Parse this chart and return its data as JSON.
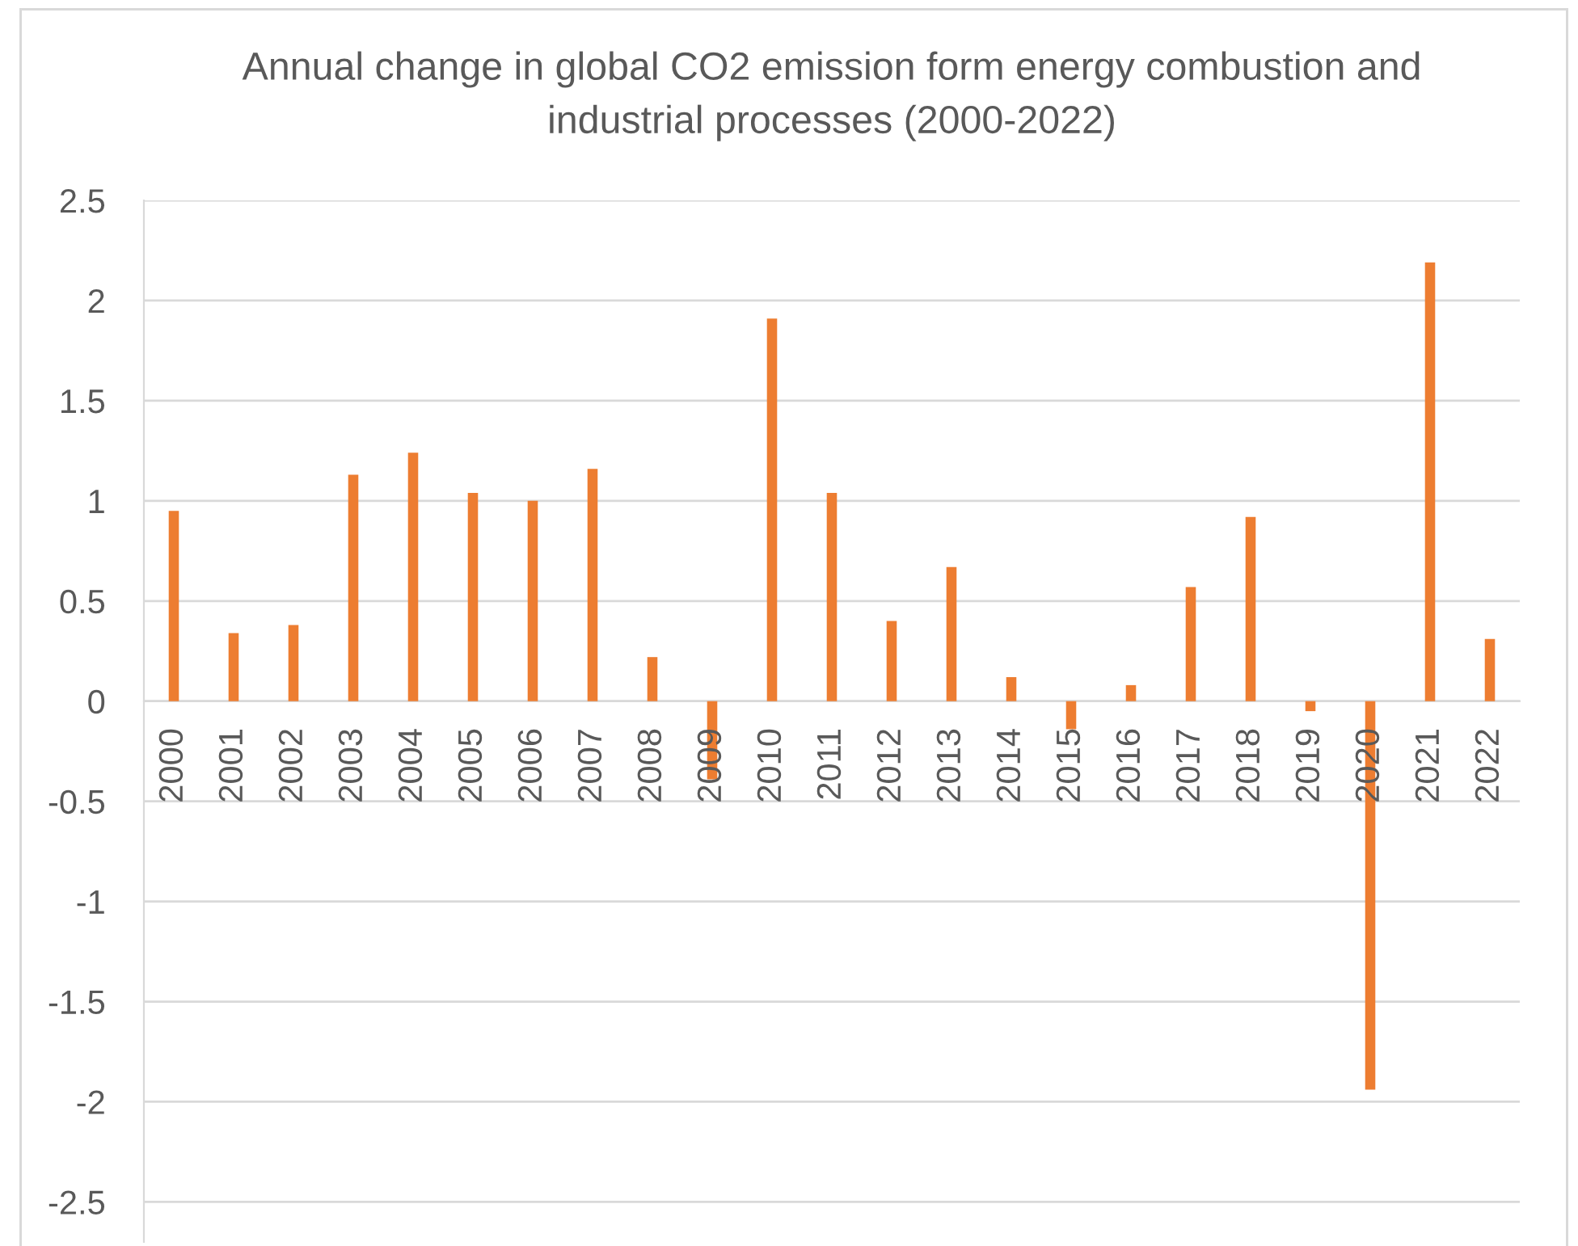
{
  "chart_data": {
    "type": "bar",
    "title": "Annual change in global CO2 emission form energy combustion and\nindustrial processes (2000-2022)",
    "categories": [
      "2000",
      "2001",
      "2002",
      "2003",
      "2004",
      "2005",
      "2006",
      "2007",
      "2008",
      "2009",
      "2010",
      "2011",
      "2012",
      "2013",
      "2014",
      "2015",
      "2016",
      "2017",
      "2018",
      "2019",
      "2020",
      "2021",
      "2022"
    ],
    "values": [
      0.95,
      0.34,
      0.38,
      1.13,
      1.24,
      1.04,
      1.0,
      1.16,
      0.22,
      -0.39,
      1.91,
      1.04,
      0.4,
      0.67,
      0.12,
      -0.14,
      0.08,
      0.57,
      0.92,
      -0.05,
      -1.94,
      2.19,
      0.31
    ],
    "color": "#ed7d31",
    "ylim": [
      -2.7,
      2.5
    ],
    "yticks": [
      -2.5,
      -2,
      -1.5,
      -1,
      -0.5,
      0,
      0.5,
      1,
      1.5,
      2,
      2.5
    ],
    "grid": "y"
  }
}
